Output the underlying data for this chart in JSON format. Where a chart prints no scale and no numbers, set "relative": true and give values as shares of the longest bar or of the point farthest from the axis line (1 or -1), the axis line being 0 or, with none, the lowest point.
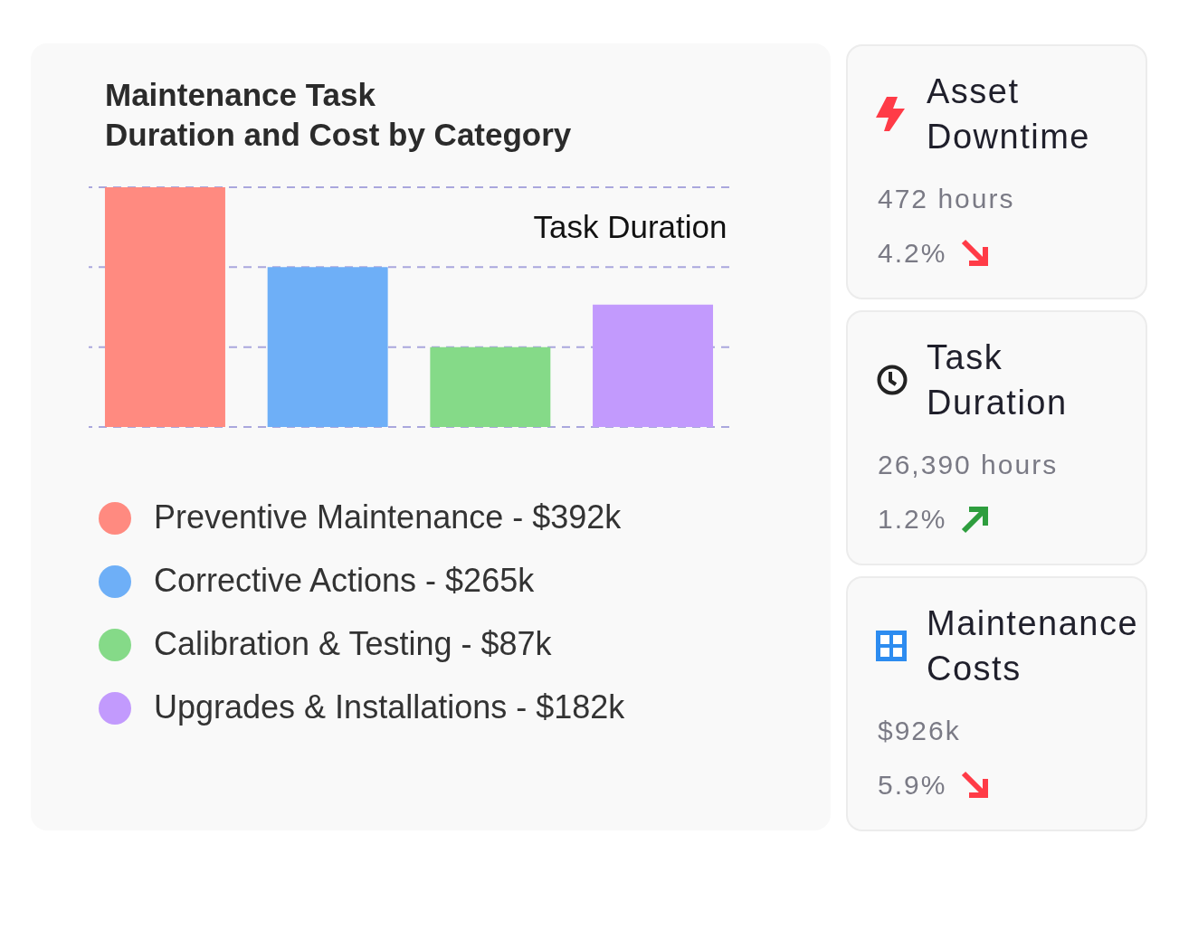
{
  "chart_data": [
    {
      "type": "bar",
      "title": "Maintenance Task\nDuration and Cost by Category",
      "ylabel": "Task Duration",
      "categories": [
        null,
        null,
        null,
        null
      ],
      "series": [
        {
          "name": "Preventive Maintenance - $392k",
          "color": "#ff8a80",
          "values": [
            1,
            null,
            null,
            null
          ]
        },
        {
          "name": "Corrective Actions - $265k",
          "color": "#6eaff7",
          "values": [
            null,
            0.667,
            null,
            null
          ]
        },
        {
          "name": "Calibration & Testing - $87k",
          "color": "#85da88",
          "values": [
            null,
            null,
            0.333,
            null
          ]
        },
        {
          "name": "Upgrades & Installations - $182k",
          "color": "#c29afd",
          "values": [
            null,
            null,
            null,
            0.51
          ]
        }
      ],
      "stacked": true,
      "relative": true,
      "ref_lines": [
        {
          "axis": "y",
          "value": 0,
          "color": "#aaa7dd",
          "line_style": "dashed"
        },
        {
          "axis": "y",
          "value": 0.333,
          "color": "#aaa7dd",
          "line_style": "dashed"
        },
        {
          "axis": "y",
          "value": 0.667,
          "color": "#aaa7dd",
          "line_style": "dashed"
        },
        {
          "axis": "y",
          "value": 1,
          "color": "#aaa7dd",
          "line_style": "dashed"
        }
      ],
      "legend": "bottom",
      "tick_labels": false
    },
    {
      "type": "other",
      "title": "Asset Downtime",
      "annotations": [
        "472 hours",
        "4.2%"
      ]
    },
    {
      "type": "other",
      "title": "Task Duration",
      "annotations": [
        "26,390 hours",
        "1.2%"
      ]
    },
    {
      "type": "other",
      "title": "Maintenance Costs",
      "annotations": [
        "$926k",
        "5.9%"
      ]
    }
  ]
}
